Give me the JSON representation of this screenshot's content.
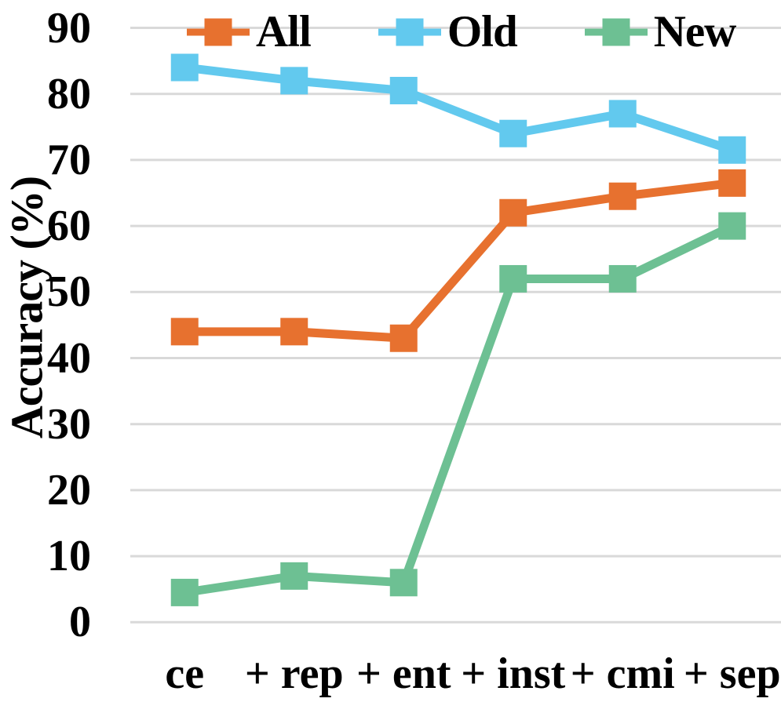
{
  "chart_data": {
    "type": "line",
    "title": "",
    "xlabel": "",
    "ylabel": "Accuracy (%)",
    "categories": [
      "ce",
      "+ rep",
      "+ ent",
      "+ inst",
      "+ cmi",
      "+ sep"
    ],
    "y_ticks": [
      90,
      80,
      70,
      60,
      50,
      40,
      30,
      20,
      10,
      0
    ],
    "ylim": [
      0,
      90
    ],
    "grid": "horizontal",
    "legend_position": "top",
    "series": [
      {
        "name": "All",
        "color": "#E7712F",
        "values": [
          44,
          44,
          43,
          62,
          64.5,
          66.5
        ]
      },
      {
        "name": "Old",
        "color": "#62C9EE",
        "values": [
          84,
          82,
          80.5,
          74,
          77,
          71.5
        ]
      },
      {
        "name": "New",
        "color": "#6DC093",
        "values": [
          4.5,
          7,
          6,
          52,
          52,
          60
        ]
      }
    ],
    "colors": {
      "gridline": "#D9D9D9",
      "text": "#000000",
      "background": "#FFFFFF"
    }
  }
}
